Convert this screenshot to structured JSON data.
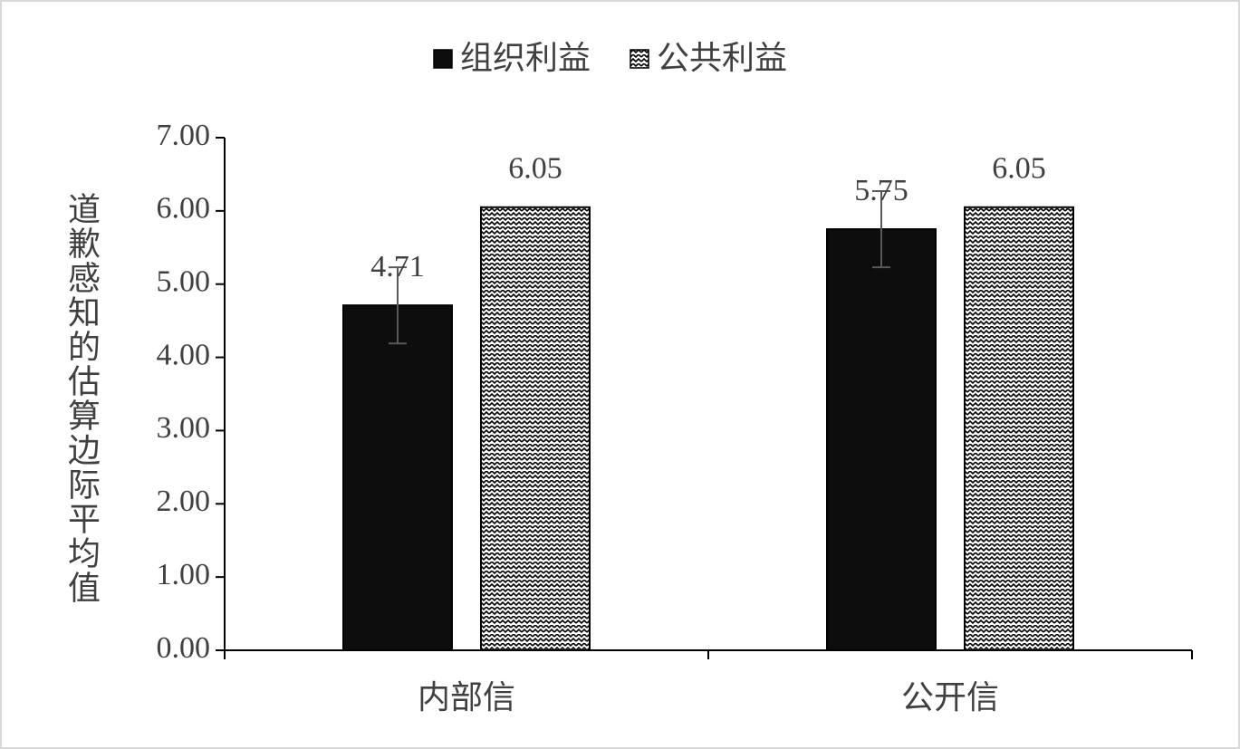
{
  "chart_data": {
    "type": "bar",
    "y_label": "道歉感知的估算边际平均值",
    "categories": [
      "内部信",
      "公开信"
    ],
    "series": [
      {
        "name": "组织利益",
        "color": "#0d0d0d",
        "values": [
          4.71,
          5.75
        ],
        "errors": [
          0.52,
          0.52
        ]
      },
      {
        "name": "公共利益",
        "color": "#000000",
        "pattern": "zigzag",
        "values": [
          6.05,
          6.05
        ]
      }
    ],
    "ylim": [
      0,
      7
    ],
    "yticks": [
      {
        "value": 0,
        "label": "0.00"
      },
      {
        "value": 1,
        "label": "1.00"
      },
      {
        "value": 2,
        "label": "2.00"
      },
      {
        "value": 3,
        "label": "3.00"
      },
      {
        "value": 4,
        "label": "4.00"
      },
      {
        "value": 5,
        "label": "5.00"
      },
      {
        "value": 6,
        "label": "6.00"
      },
      {
        "value": 7,
        "label": "7.00"
      }
    ],
    "grid": false,
    "legend": "top"
  }
}
